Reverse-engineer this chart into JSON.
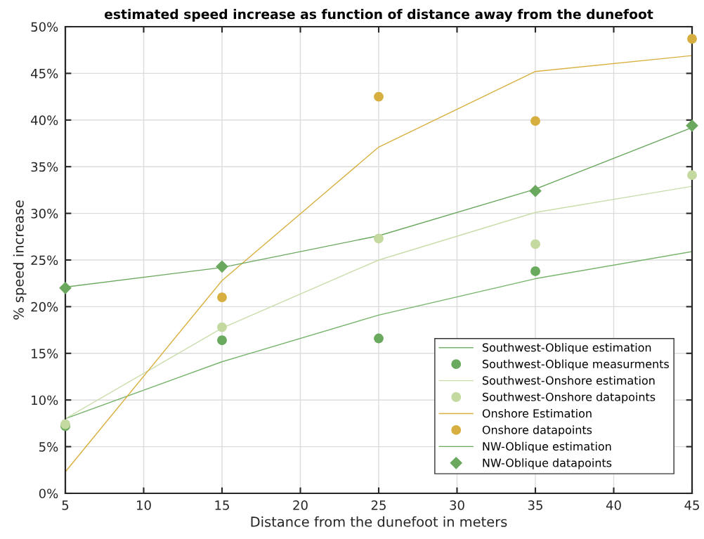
{
  "chart_data": {
    "type": "line",
    "title": "estimated speed increase as function of distance away from the dunefoot",
    "xlabel": "Distance from the dunefoot in meters",
    "ylabel": "% speed increase",
    "x": [
      5,
      15,
      25,
      35,
      45
    ],
    "xlim": [
      5,
      45
    ],
    "xticks": [
      5,
      10,
      15,
      20,
      25,
      30,
      35,
      40,
      45
    ],
    "ylim": [
      0,
      50
    ],
    "yticks": [
      {
        "value": 0,
        "label": "0%"
      },
      {
        "value": 5,
        "label": "5%"
      },
      {
        "value": 10,
        "label": "10%"
      },
      {
        "value": 15,
        "label": "15%"
      },
      {
        "value": 20,
        "label": "20%"
      },
      {
        "value": 25,
        "label": "25%"
      },
      {
        "value": 30,
        "label": "30%"
      },
      {
        "value": 35,
        "label": "35%"
      },
      {
        "value": 40,
        "label": "40%"
      },
      {
        "value": 45,
        "label": "45%"
      },
      {
        "value": 50,
        "label": "50%"
      }
    ],
    "grid": true,
    "legend": "bottom right",
    "series": [
      {
        "name": "Southwest-Oblique estimation",
        "marker": "none",
        "color": "#77b46b",
        "values": [
          8.0,
          14.1,
          19.1,
          23.0,
          25.9
        ]
      },
      {
        "name": "Southwest-Oblique measurments",
        "type": "scatter",
        "marker": "circle",
        "color": "#6aaa5e",
        "values": [
          7.2,
          16.4,
          16.6,
          23.8,
          null
        ]
      },
      {
        "name": "Southwest-Onshore estimation",
        "marker": "none",
        "color": "#c9dcaa",
        "values": [
          8.0,
          17.7,
          25.0,
          30.1,
          32.9
        ]
      },
      {
        "name": "Southwest-Onshore datapoints",
        "type": "scatter",
        "marker": "circle",
        "color": "#c3d9a0",
        "values": [
          7.4,
          17.8,
          27.3,
          26.7,
          34.1
        ]
      },
      {
        "name": "Onshore Estimation",
        "marker": "none",
        "color": "#d8b040",
        "values": [
          2.3,
          22.8,
          37.1,
          45.2,
          46.9
        ]
      },
      {
        "name": "Onshore datapoints",
        "type": "scatter",
        "marker": "circle",
        "color": "#d6af40",
        "values": [
          null,
          21.0,
          42.5,
          39.9,
          48.7
        ]
      },
      {
        "name": "NW-Oblique estimation",
        "marker": "none",
        "color": "#6aa85e",
        "values": [
          22.1,
          24.2,
          27.6,
          32.6,
          39.2
        ]
      },
      {
        "name": "NW-Oblique datapoints",
        "type": "scatter",
        "marker": "diamond",
        "color": "#6aa85e",
        "values": [
          22.0,
          24.3,
          null,
          32.4,
          39.4
        ]
      }
    ]
  }
}
